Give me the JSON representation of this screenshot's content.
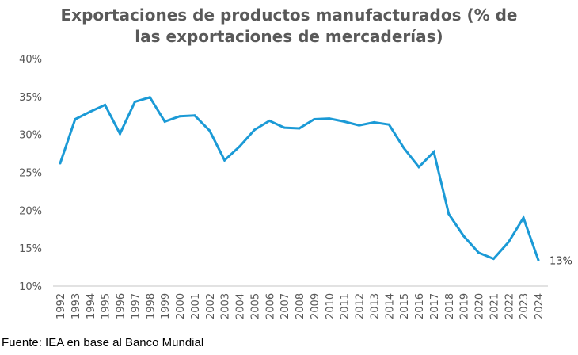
{
  "chart_data": {
    "type": "line",
    "title_lines": [
      "Exportaciones de productos manufacturados (% de",
      "las exportaciones de mercaderías)"
    ],
    "xlabel": "",
    "ylabel": "",
    "ylim": [
      10,
      40
    ],
    "yticks": [
      10,
      15,
      20,
      25,
      30,
      35,
      40
    ],
    "ytick_labels": [
      "10%",
      "15%",
      "20%",
      "25%",
      "30%",
      "35%",
      "40%"
    ],
    "grid": false,
    "legend": "none",
    "categories": [
      "1992",
      "1993",
      "1994",
      "1995",
      "1996",
      "1997",
      "1998",
      "1999",
      "2000",
      "2001",
      "2002",
      "2003",
      "2004",
      "2005",
      "2006",
      "2007",
      "2008",
      "2009",
      "2010",
      "2011",
      "2012",
      "2013",
      "2014",
      "2015",
      "2016",
      "2017",
      "2018",
      "2019",
      "2020",
      "2021",
      "2022",
      "2023",
      "2024"
    ],
    "series": [
      {
        "name": "Exportaciones de productos manufacturados",
        "color": "#1B9AD6",
        "values": [
          26.2,
          32.0,
          33.0,
          33.9,
          30.1,
          34.3,
          34.9,
          31.7,
          32.4,
          32.5,
          30.5,
          26.6,
          28.4,
          30.6,
          31.8,
          30.9,
          30.8,
          32.0,
          32.1,
          31.7,
          31.2,
          31.6,
          31.3,
          28.2,
          25.7,
          27.7,
          19.5,
          16.6,
          14.4,
          13.6,
          15.8,
          19.0,
          13.4
        ]
      }
    ],
    "annotations": [
      {
        "category": "2024",
        "text": "13%"
      }
    ],
    "source": "Fuente: IEA en base al Banco Mundial"
  }
}
